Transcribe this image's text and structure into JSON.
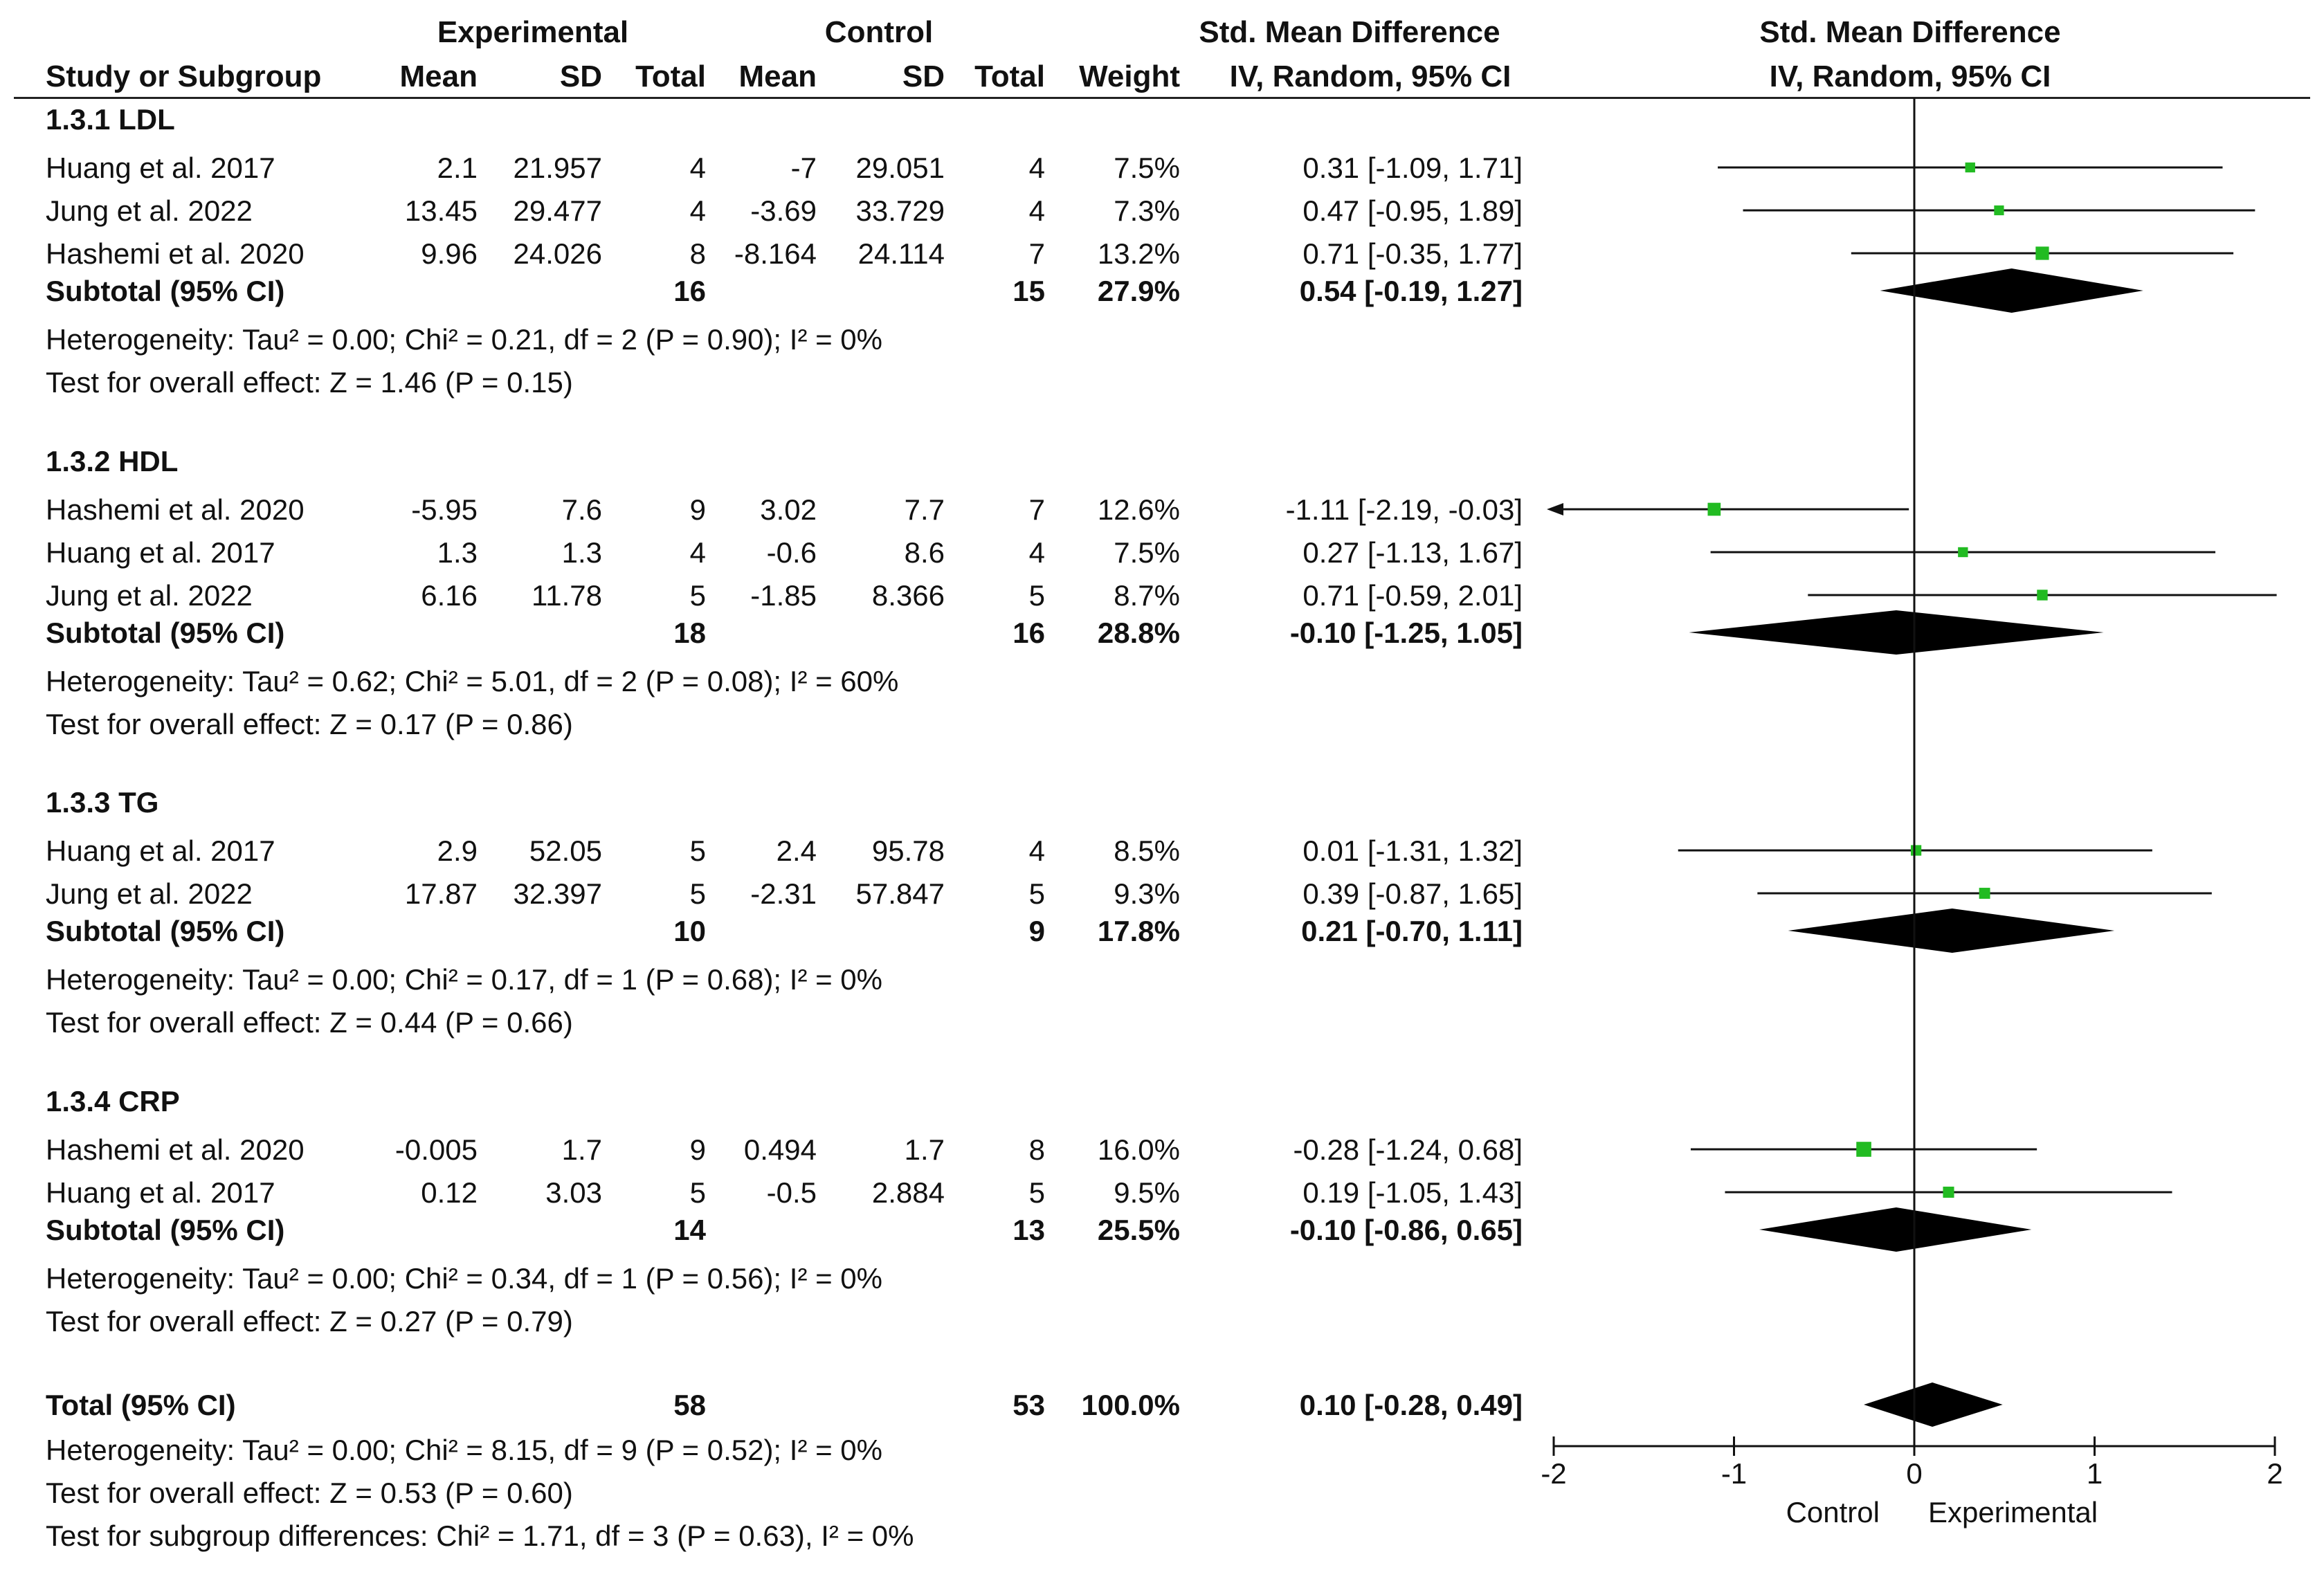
{
  "chart_data": {
    "type": "forest",
    "header": {
      "group1": "Experimental",
      "group2": "Control",
      "effect_col": "Std. Mean Difference",
      "effect_plot": "Std. Mean Difference",
      "method_col": "IV, Random, 95% CI",
      "method_plot": "IV, Random, 95% CI",
      "col_study": "Study or Subgroup",
      "col_mean1": "Mean",
      "col_sd1": "SD",
      "col_total1": "Total",
      "col_mean2": "Mean",
      "col_sd2": "SD",
      "col_total2": "Total",
      "col_weight": "Weight"
    },
    "subgroups": [
      {
        "title": "1.3.1 LDL",
        "studies": [
          {
            "name": "Huang et al. 2017",
            "mean1": "2.1",
            "sd1": "21.957",
            "n1": "4",
            "mean2": "-7",
            "sd2": "29.051",
            "n2": "4",
            "weight": "7.5%",
            "ci_text": "0.31 [-1.09, 1.71]",
            "est": 0.31,
            "lo": -1.09,
            "hi": 1.71,
            "w": 7.5
          },
          {
            "name": "Jung et al. 2022",
            "mean1": "13.45",
            "sd1": "29.477",
            "n1": "4",
            "mean2": "-3.69",
            "sd2": "33.729",
            "n2": "4",
            "weight": "7.3%",
            "ci_text": "0.47 [-0.95, 1.89]",
            "est": 0.47,
            "lo": -0.95,
            "hi": 1.89,
            "w": 7.3
          },
          {
            "name": "Hashemi et al. 2020",
            "mean1": "9.96",
            "sd1": "24.026",
            "n1": "8",
            "mean2": "-8.164",
            "sd2": "24.114",
            "n2": "7",
            "weight": "13.2%",
            "ci_text": "0.71 [-0.35, 1.77]",
            "est": 0.71,
            "lo": -0.35,
            "hi": 1.77,
            "w": 13.2
          }
        ],
        "subtotal": {
          "label": "Subtotal (95% CI)",
          "n1": "16",
          "n2": "15",
          "weight": "27.9%",
          "ci_text": "0.54 [-0.19, 1.27]",
          "est": 0.54,
          "lo": -0.19,
          "hi": 1.27
        },
        "heterogeneity": "Heterogeneity: Tau² = 0.00; Chi² = 0.21, df = 2 (P = 0.90); I² = 0%",
        "overall": "Test for overall effect: Z = 1.46 (P = 0.15)"
      },
      {
        "title": "1.3.2 HDL",
        "studies": [
          {
            "name": "Hashemi et al. 2020",
            "mean1": "-5.95",
            "sd1": "7.6",
            "n1": "9",
            "mean2": "3.02",
            "sd2": "7.7",
            "n2": "7",
            "weight": "12.6%",
            "ci_text": "-1.11 [-2.19, -0.03]",
            "est": -1.11,
            "lo": -2.19,
            "hi": -0.03,
            "w": 12.6
          },
          {
            "name": "Huang et al. 2017",
            "mean1": "1.3",
            "sd1": "1.3",
            "n1": "4",
            "mean2": "-0.6",
            "sd2": "8.6",
            "n2": "4",
            "weight": "7.5%",
            "ci_text": "0.27 [-1.13, 1.67]",
            "est": 0.27,
            "lo": -1.13,
            "hi": 1.67,
            "w": 7.5
          },
          {
            "name": "Jung et al. 2022",
            "mean1": "6.16",
            "sd1": "11.78",
            "n1": "5",
            "mean2": "-1.85",
            "sd2": "8.366",
            "n2": "5",
            "weight": "8.7%",
            "ci_text": "0.71 [-0.59, 2.01]",
            "est": 0.71,
            "lo": -0.59,
            "hi": 2.01,
            "w": 8.7
          }
        ],
        "subtotal": {
          "label": "Subtotal (95% CI)",
          "n1": "18",
          "n2": "16",
          "weight": "28.8%",
          "ci_text": "-0.10 [-1.25, 1.05]",
          "est": -0.1,
          "lo": -1.25,
          "hi": 1.05
        },
        "heterogeneity": "Heterogeneity: Tau² = 0.62; Chi² = 5.01, df = 2 (P = 0.08); I² = 60%",
        "overall": "Test for overall effect: Z = 0.17 (P = 0.86)"
      },
      {
        "title": "1.3.3 TG",
        "studies": [
          {
            "name": "Huang et al. 2017",
            "mean1": "2.9",
            "sd1": "52.05",
            "n1": "5",
            "mean2": "2.4",
            "sd2": "95.78",
            "n2": "4",
            "weight": "8.5%",
            "ci_text": "0.01 [-1.31, 1.32]",
            "est": 0.01,
            "lo": -1.31,
            "hi": 1.32,
            "w": 8.5
          },
          {
            "name": "Jung et al. 2022",
            "mean1": "17.87",
            "sd1": "32.397",
            "n1": "5",
            "mean2": "-2.31",
            "sd2": "57.847",
            "n2": "5",
            "weight": "9.3%",
            "ci_text": "0.39 [-0.87, 1.65]",
            "est": 0.39,
            "lo": -0.87,
            "hi": 1.65,
            "w": 9.3
          }
        ],
        "subtotal": {
          "label": "Subtotal (95% CI)",
          "n1": "10",
          "n2": "9",
          "weight": "17.8%",
          "ci_text": "0.21 [-0.70, 1.11]",
          "est": 0.21,
          "lo": -0.7,
          "hi": 1.11
        },
        "heterogeneity": "Heterogeneity: Tau² = 0.00; Chi² = 0.17, df = 1 (P = 0.68); I² = 0%",
        "overall": "Test for overall effect: Z = 0.44 (P = 0.66)"
      },
      {
        "title": "1.3.4 CRP",
        "studies": [
          {
            "name": "Hashemi et al. 2020",
            "mean1": "-0.005",
            "sd1": "1.7",
            "n1": "9",
            "mean2": "0.494",
            "sd2": "1.7",
            "n2": "8",
            "weight": "16.0%",
            "ci_text": "-0.28 [-1.24, 0.68]",
            "est": -0.28,
            "lo": -1.24,
            "hi": 0.68,
            "w": 16.0
          },
          {
            "name": "Huang et al. 2017",
            "mean1": "0.12",
            "sd1": "3.03",
            "n1": "5",
            "mean2": "-0.5",
            "sd2": "2.884",
            "n2": "5",
            "weight": "9.5%",
            "ci_text": "0.19 [-1.05, 1.43]",
            "est": 0.19,
            "lo": -1.05,
            "hi": 1.43,
            "w": 9.5
          }
        ],
        "subtotal": {
          "label": "Subtotal (95% CI)",
          "n1": "14",
          "n2": "13",
          "weight": "25.5%",
          "ci_text": "-0.10 [-0.86, 0.65]",
          "est": -0.1,
          "lo": -0.86,
          "hi": 0.65
        },
        "heterogeneity": "Heterogeneity: Tau² = 0.00; Chi² = 0.34, df = 1 (P = 0.56); I² = 0%",
        "overall": "Test for overall effect: Z = 0.27 (P = 0.79)"
      }
    ],
    "total": {
      "label": "Total (95% CI)",
      "n1": "58",
      "n2": "53",
      "weight": "100.0%",
      "ci_text": "0.10 [-0.28, 0.49]",
      "est": 0.1,
      "lo": -0.28,
      "hi": 0.49,
      "heterogeneity": "Heterogeneity: Tau² = 0.00; Chi² = 8.15, df = 9 (P = 0.52); I² = 0%",
      "overall": "Test for overall effect: Z = 0.53 (P = 0.60)",
      "subgroup_diff": "Test for subgroup differences: Chi² = 1.71, df = 3 (P = 0.63), I² = 0%"
    },
    "axis": {
      "xlim": [
        -2,
        2
      ],
      "ticks": [
        -2,
        -1,
        0,
        1,
        2
      ],
      "tick_labels": [
        "-2",
        "-1",
        "0",
        "1",
        "2"
      ],
      "favours_left": "Control",
      "favours_right": "Experimental"
    },
    "colors": {
      "square": "#22bb22",
      "diamond": "#000000",
      "line": "#111111"
    }
  }
}
